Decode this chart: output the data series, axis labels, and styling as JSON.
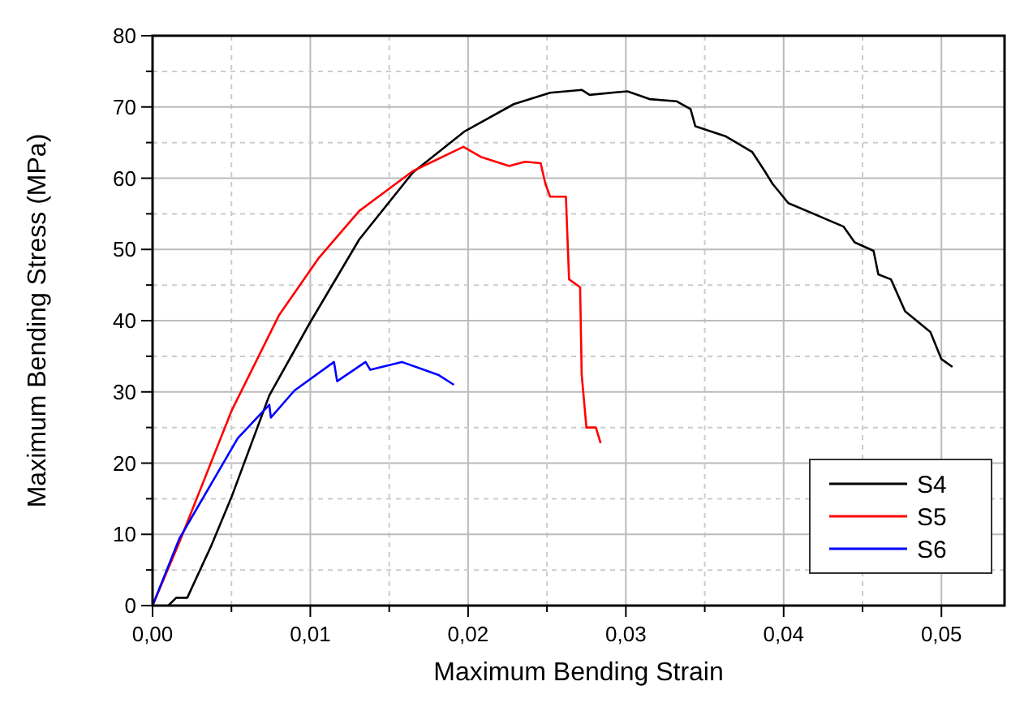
{
  "chart_data": {
    "type": "line",
    "xlabel": "Maximum Bending Strain",
    "ylabel": "Maximum Bending Stress (MPa)",
    "xlim": [
      0,
      0.054
    ],
    "ylim": [
      0,
      80
    ],
    "xticks": [
      {
        "value": 0,
        "label": "0,00"
      },
      {
        "value": 0.005,
        "label": null
      },
      {
        "value": 0.01,
        "label": "0,01"
      },
      {
        "value": 0.015,
        "label": null
      },
      {
        "value": 0.02,
        "label": "0,02"
      },
      {
        "value": 0.025,
        "label": null
      },
      {
        "value": 0.03,
        "label": "0,03"
      },
      {
        "value": 0.035,
        "label": null
      },
      {
        "value": 0.04,
        "label": "0,04"
      },
      {
        "value": 0.045,
        "label": null
      },
      {
        "value": 0.05,
        "label": "0,05"
      }
    ],
    "yticks": [
      0,
      {
        "value": 5,
        "label": null
      },
      10,
      {
        "value": 15,
        "label": null
      },
      20,
      {
        "value": 25,
        "label": null
      },
      30,
      {
        "value": 35,
        "label": null
      },
      40,
      {
        "value": 45,
        "label": null
      },
      50,
      {
        "value": 55,
        "label": null
      },
      60,
      {
        "value": 65,
        "label": null
      },
      70,
      {
        "value": 75,
        "label": null
      },
      80
    ],
    "grid": true,
    "legend": "bottom right",
    "marker": "none",
    "line_style": "solid",
    "series": [
      {
        "name": "S4",
        "color": "#000000",
        "x": [
          0.001,
          0.0015,
          0.0022,
          0.0037,
          0.005,
          0.0074,
          0.01,
          0.0131,
          0.0165,
          0.0198,
          0.0229,
          0.0252,
          0.0272,
          0.0277,
          0.0301,
          0.0315,
          0.0332,
          0.0341,
          0.0344,
          0.0363,
          0.038,
          0.0388,
          0.0393,
          0.0403,
          0.0438,
          0.0445,
          0.0457,
          0.046,
          0.0468,
          0.0477,
          0.0493,
          0.05,
          0.0507
        ],
        "values": [
          0,
          1.1,
          1.1,
          8.3,
          15.2,
          29.5,
          39.8,
          51.4,
          60.8,
          66.6,
          70.4,
          72,
          72.4,
          71.7,
          72.2,
          71.1,
          70.8,
          69.7,
          67.3,
          65.9,
          63.7,
          61,
          59.2,
          56.5,
          53.2,
          51,
          49.8,
          46.5,
          45.8,
          41.3,
          38.4,
          34.6,
          33.5
        ]
      },
      {
        "name": "S5",
        "color": "#ff0000",
        "x": [
          0,
          0.0017,
          0.005,
          0.008,
          0.0105,
          0.0131,
          0.0165,
          0.0197,
          0.0208,
          0.0226,
          0.0236,
          0.0246,
          0.0249,
          0.0252,
          0.0262,
          0.0264,
          0.0271,
          0.0272,
          0.0275,
          0.0281,
          0.0284
        ],
        "values": [
          0,
          8.9,
          27.3,
          40.7,
          48.7,
          55.4,
          61,
          64.4,
          63,
          61.7,
          62.3,
          62.1,
          59.2,
          57.4,
          57.4,
          45.8,
          44.7,
          32.4,
          25,
          25,
          22.8
        ]
      },
      {
        "name": "S6",
        "color": "#0000ff",
        "x": [
          0,
          0.0017,
          0.0054,
          0.0074,
          0.0075,
          0.009,
          0.0115,
          0.0117,
          0.0135,
          0.0138,
          0.0158,
          0.0181,
          0.0191
        ],
        "values": [
          0,
          9.4,
          23.5,
          28.2,
          26.4,
          30.2,
          34.2,
          31.5,
          34.2,
          33.1,
          34.2,
          32.4,
          31
        ]
      }
    ]
  }
}
